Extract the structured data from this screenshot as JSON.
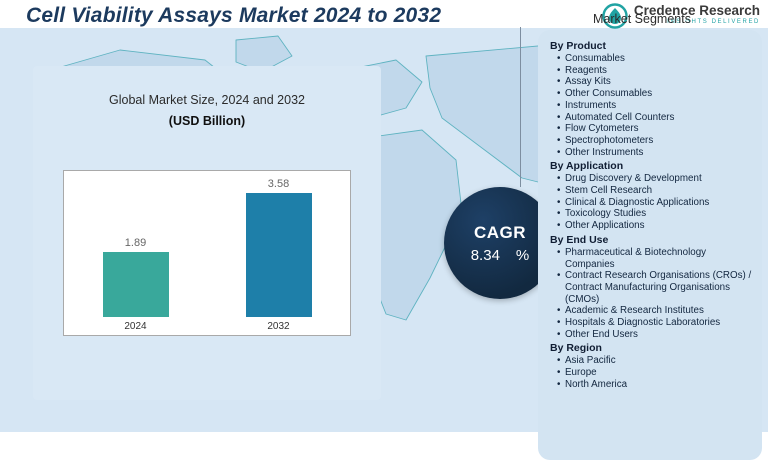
{
  "title": "Cell Viability Assays Market 2024 to 2032",
  "logo": {
    "brand": "Credence Research",
    "tagline": "INSIGHTS DELIVERED"
  },
  "segments_label": "Market Segments",
  "chart_panel": {
    "title": "Global Market Size, 2024 and 2032",
    "subtitle": "(USD Billion)"
  },
  "chart_data": {
    "type": "bar",
    "categories": [
      "2024",
      "2032"
    ],
    "values": [
      1.89,
      3.58
    ],
    "value_labels": [
      "1.89",
      "3.58"
    ],
    "title": "Global Market Size, 2024 and 2032",
    "subtitle": "(USD Billion)",
    "xlabel": "",
    "ylabel": "",
    "ylim": [
      0,
      4
    ],
    "grid": false,
    "legend": false,
    "bar_colors": [
      "#39a89b",
      "#1e7fa9"
    ]
  },
  "cagr": {
    "label": "CAGR",
    "value": "8.34",
    "unit": "%"
  },
  "segments": [
    {
      "heading": "By Product",
      "items": [
        "Consumables",
        "Reagents",
        "Assay Kits",
        "Other Consumables",
        "Instruments",
        "Automated Cell Counters",
        "Flow Cytometers",
        "Spectrophotometers",
        "Other Instruments"
      ]
    },
    {
      "heading": "By Application",
      "items": [
        "Drug Discovery & Development",
        "Stem Cell Research",
        "Clinical & Diagnostic Applications",
        "Toxicology Studies",
        "Other Applications"
      ]
    },
    {
      "heading": "By End Use",
      "items": [
        "Pharmaceutical & Biotechnology Companies",
        "Contract Research Organisations (CROs) / Contract Manufacturing Organisations (CMOs)",
        "Academic & Research Institutes",
        "Hospitals & Diagnostic Laboratories",
        "Other End Users"
      ]
    },
    {
      "heading": "By Region",
      "items": [
        "Asia Pacific",
        "Europe",
        "North America"
      ]
    }
  ],
  "colors": {
    "title": "#1c3a5e",
    "panel_bg": "#d3e4f2",
    "chart_panel_bg": "#d9e8f5",
    "cagr_bg": "#13293f",
    "bar_2024": "#39a89b",
    "bar_2032": "#1e7fa9",
    "accent_teal": "#24a3a6"
  }
}
